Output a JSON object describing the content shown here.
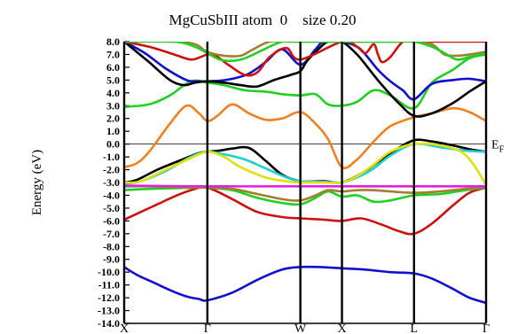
{
  "chart_data": {
    "type": "line",
    "title": "MgCuSbIII atom  0    size 0.20",
    "ylabel": "Energy (eV)",
    "ylim": [
      -14.0,
      8.0
    ],
    "y_ticks": [
      "8.0",
      "7.0",
      "6.0",
      "5.0",
      "4.0",
      "3.0",
      "2.0",
      "1.0",
      "0.0",
      "-1.0",
      "-2.0",
      "-3.0",
      "-4.0",
      "-5.0",
      "-6.0",
      "-7.0",
      "-8.0",
      "-9.0",
      "-10.0",
      "-11.0",
      "-12.0",
      "-13.0",
      "-14.0"
    ],
    "kpoints": [
      {
        "label": "X",
        "x": 0.0
      },
      {
        "label": "Γ",
        "x": 1.0
      },
      {
        "label": "W",
        "x": 2.118
      },
      {
        "label": "X",
        "x": 2.618
      },
      {
        "label": "L",
        "x": 3.484
      },
      {
        "label": "Γ",
        "x": 4.35
      }
    ],
    "fermi_level": 0.0,
    "fermi_label": "E",
    "fermi_sub": "F",
    "series": [
      {
        "color": "#1010d0",
        "x": [
          0,
          0.15,
          0.35,
          0.55,
          0.75,
          0.9,
          1.0,
          1.3,
          1.6,
          1.9,
          2.118,
          2.35,
          2.618,
          2.9,
          3.2,
          3.484,
          3.7,
          3.95,
          4.15,
          4.35
        ],
        "y": [
          -9.6,
          -10.2,
          -10.8,
          -11.4,
          -11.9,
          -12.1,
          -12.2,
          -11.6,
          -10.6,
          -9.8,
          -9.6,
          -9.6,
          -9.7,
          -9.8,
          -10.0,
          -10.1,
          -10.5,
          -11.3,
          -12.0,
          -12.4
        ]
      },
      {
        "color": "#d01010",
        "x": [
          0,
          0.2,
          0.4,
          0.6,
          0.8,
          1.0,
          1.3,
          1.6,
          1.9,
          2.118,
          2.4,
          2.618,
          2.85,
          3.1,
          3.3,
          3.484,
          3.7,
          3.95,
          4.15,
          4.35
        ],
        "y": [
          -5.9,
          -5.3,
          -4.7,
          -4.1,
          -3.6,
          -3.4,
          -4.3,
          -5.3,
          -5.7,
          -5.8,
          -5.9,
          -6.0,
          -5.8,
          -6.3,
          -6.8,
          -7.0,
          -6.2,
          -4.8,
          -3.8,
          -3.4
        ]
      },
      {
        "color": "#20d020",
        "x": [
          0,
          0.3,
          0.6,
          0.85,
          1.0,
          1.3,
          1.6,
          1.9,
          2.118,
          2.3,
          2.45,
          2.618,
          2.8,
          3.0,
          3.2,
          3.484,
          3.8,
          4.1,
          4.35
        ],
        "y": [
          -3.6,
          -3.5,
          -3.45,
          -3.4,
          -3.4,
          -3.6,
          -4.2,
          -4.6,
          -4.7,
          -4.2,
          -3.7,
          -4.1,
          -4.0,
          -4.5,
          -4.4,
          -4.0,
          -3.9,
          -3.6,
          -3.4
        ]
      },
      {
        "color": "#a08030",
        "x": [
          0,
          0.3,
          0.6,
          0.85,
          1.0,
          1.3,
          1.6,
          1.9,
          2.118,
          2.3,
          2.45,
          2.618,
          2.8,
          3.0,
          3.2,
          3.484,
          3.8,
          4.1,
          4.35
        ],
        "y": [
          -3.3,
          -3.3,
          -3.35,
          -3.4,
          -3.4,
          -3.5,
          -3.9,
          -4.3,
          -4.4,
          -4.0,
          -3.6,
          -3.7,
          -3.6,
          -3.6,
          -3.7,
          -3.8,
          -3.7,
          -3.5,
          -3.4
        ]
      },
      {
        "color": "#e020e0",
        "x": [
          0,
          1.0,
          2.118,
          2.618,
          3.484,
          4.35
        ],
        "y": [
          -3.25,
          -3.3,
          -3.3,
          -3.3,
          -3.3,
          -3.3
        ]
      },
      {
        "color": "#000000",
        "x": [
          0,
          0.15,
          0.4,
          0.7,
          0.9,
          1.0,
          1.15,
          1.3,
          1.5,
          1.7,
          1.9,
          2.118,
          2.4,
          2.618,
          2.85,
          3.05,
          3.25,
          3.484,
          3.7,
          3.95,
          4.15,
          4.35
        ],
        "y": [
          -3.0,
          -2.8,
          -2.0,
          -1.2,
          -0.7,
          -0.6,
          -0.5,
          -0.35,
          -0.3,
          -1.3,
          -2.4,
          -2.9,
          -2.9,
          -3.0,
          -2.3,
          -1.4,
          -0.5,
          0.3,
          0.2,
          -0.1,
          -0.4,
          -0.6
        ]
      },
      {
        "color": "#20d0d0",
        "x": [
          0,
          0.2,
          0.5,
          0.8,
          1.0,
          1.2,
          1.45,
          1.7,
          1.95,
          2.118,
          2.4,
          2.618,
          2.8,
          3.0,
          3.2,
          3.484,
          3.8,
          4.1,
          4.35
        ],
        "y": [
          -3.1,
          -2.9,
          -2.1,
          -1.0,
          -0.6,
          -0.8,
          -1.2,
          -1.9,
          -2.6,
          -2.9,
          -2.95,
          -3.0,
          -2.6,
          -1.9,
          -0.9,
          0.0,
          -0.25,
          -0.5,
          -0.6
        ]
      },
      {
        "color": "#e0e010",
        "x": [
          0,
          0.2,
          0.5,
          0.8,
          1.0,
          1.2,
          1.4,
          1.7,
          1.95,
          2.118,
          2.4,
          2.618,
          2.8,
          3.0,
          3.2,
          3.484,
          3.8,
          4.05,
          4.2,
          4.35
        ],
        "y": [
          -3.0,
          -2.9,
          -2.0,
          -1.1,
          -0.6,
          -1.0,
          -1.8,
          -2.6,
          -2.9,
          -3.0,
          -3.0,
          -3.0,
          -2.5,
          -1.6,
          -0.6,
          0.0,
          -0.1,
          -0.6,
          -1.6,
          -3.2
        ]
      },
      {
        "color": "#f08020",
        "x": [
          0,
          0.15,
          0.3,
          0.55,
          0.75,
          0.9,
          1.0,
          1.12,
          1.3,
          1.5,
          1.7,
          1.9,
          2.118,
          2.3,
          2.45,
          2.618,
          2.8,
          3.0,
          3.2,
          3.484,
          3.7,
          3.95,
          4.15,
          4.35
        ],
        "y": [
          -1.8,
          -1.5,
          -0.6,
          1.6,
          3.0,
          2.4,
          1.8,
          2.2,
          3.1,
          2.4,
          1.9,
          2.0,
          2.5,
          1.6,
          0.4,
          -1.8,
          -1.2,
          0.2,
          1.4,
          2.1,
          2.4,
          2.8,
          2.5,
          1.8
        ]
      },
      {
        "color": "#20d020",
        "x": [
          0,
          0.3,
          0.55,
          0.8,
          1.0,
          1.2,
          1.45,
          1.7,
          1.9,
          2.118,
          2.3,
          2.45,
          2.618,
          2.8,
          3.0,
          3.2,
          3.484,
          3.7,
          3.95,
          4.15,
          4.35
        ],
        "y": [
          2.9,
          3.1,
          3.8,
          4.9,
          4.8,
          4.6,
          4.2,
          4.1,
          3.9,
          3.8,
          3.9,
          3.1,
          3.0,
          3.3,
          4.2,
          3.8,
          2.8,
          4.8,
          5.8,
          6.7,
          7.0
        ]
      },
      {
        "color": "#1010d0",
        "x": [
          0,
          0.25,
          0.5,
          0.75,
          0.9,
          1.0,
          1.15,
          1.3,
          1.5,
          1.7,
          1.9,
          2.118,
          2.3,
          2.4,
          2.618,
          2.8,
          2.9,
          3.05,
          3.2,
          3.35,
          3.484,
          3.7,
          3.95,
          4.15,
          4.35
        ],
        "y": [
          8.0,
          7.1,
          5.9,
          5.0,
          4.9,
          4.9,
          4.95,
          5.1,
          5.5,
          6.4,
          7.4,
          6.2,
          7.4,
          8.0,
          8.0,
          7.6,
          7.0,
          5.8,
          4.9,
          4.2,
          3.5,
          4.7,
          5.0,
          5.1,
          4.9
        ]
      },
      {
        "color": "#000000",
        "x": [
          0,
          0.3,
          0.55,
          0.72,
          0.85,
          1.0,
          1.2,
          1.4,
          1.6,
          1.8,
          2.0,
          2.118,
          2.2,
          2.35,
          2.45,
          2.618,
          2.8,
          2.95,
          3.1,
          3.3,
          3.484,
          3.7,
          3.95,
          4.15,
          4.35
        ],
        "y": [
          8.0,
          6.4,
          5.0,
          4.6,
          4.8,
          4.9,
          4.8,
          4.6,
          4.5,
          5.0,
          5.4,
          5.7,
          6.5,
          7.5,
          8.0,
          8.0,
          7.0,
          5.8,
          4.6,
          3.2,
          2.2,
          2.4,
          3.2,
          4.1,
          4.9
        ]
      },
      {
        "color": "#d01010",
        "x": [
          0,
          0.3,
          0.6,
          0.8,
          0.92,
          1.0,
          1.1,
          1.25,
          1.45,
          1.6,
          1.75,
          1.95,
          2.118,
          2.618,
          2.8,
          2.9,
          3.0,
          3.05,
          3.1,
          3.2,
          3.35,
          3.484,
          3.6,
          3.75,
          3.95,
          4.15,
          4.35
        ],
        "y": [
          8.0,
          7.6,
          7.0,
          6.6,
          6.8,
          7.0,
          6.9,
          6.2,
          5.4,
          5.6,
          6.8,
          7.5,
          6.6,
          8.0,
          7.6,
          7.1,
          7.8,
          7.0,
          6.4,
          6.8,
          8.0,
          8.0,
          8.0,
          8.0,
          8.0,
          8.0,
          8.0
        ]
      },
      {
        "color": "#a08030",
        "x": [
          0,
          0.6,
          0.85,
          1.0,
          1.2,
          1.4,
          1.55,
          1.75,
          2.0,
          2.118,
          2.618,
          3.2,
          3.484,
          3.7,
          3.85,
          4.0,
          4.15,
          4.35
        ],
        "y": [
          8.0,
          8.0,
          7.8,
          7.2,
          6.9,
          6.9,
          7.4,
          8.0,
          8.0,
          8.0,
          8.0,
          8.0,
          8.0,
          7.8,
          7.0,
          6.9,
          7.0,
          7.2
        ]
      },
      {
        "color": "#20d020",
        "x": [
          0,
          0.6,
          0.85,
          1.0,
          1.15,
          1.3,
          1.45,
          1.65,
          1.9,
          2.118,
          2.618,
          3.2,
          3.484,
          3.7,
          3.85,
          4.0,
          4.15,
          4.35
        ],
        "y": [
          8.0,
          8.0,
          7.6,
          7.1,
          6.6,
          6.5,
          6.7,
          7.3,
          8.0,
          8.0,
          8.0,
          8.0,
          8.0,
          7.6,
          7.1,
          6.6,
          6.8,
          7.1
        ]
      }
    ]
  }
}
